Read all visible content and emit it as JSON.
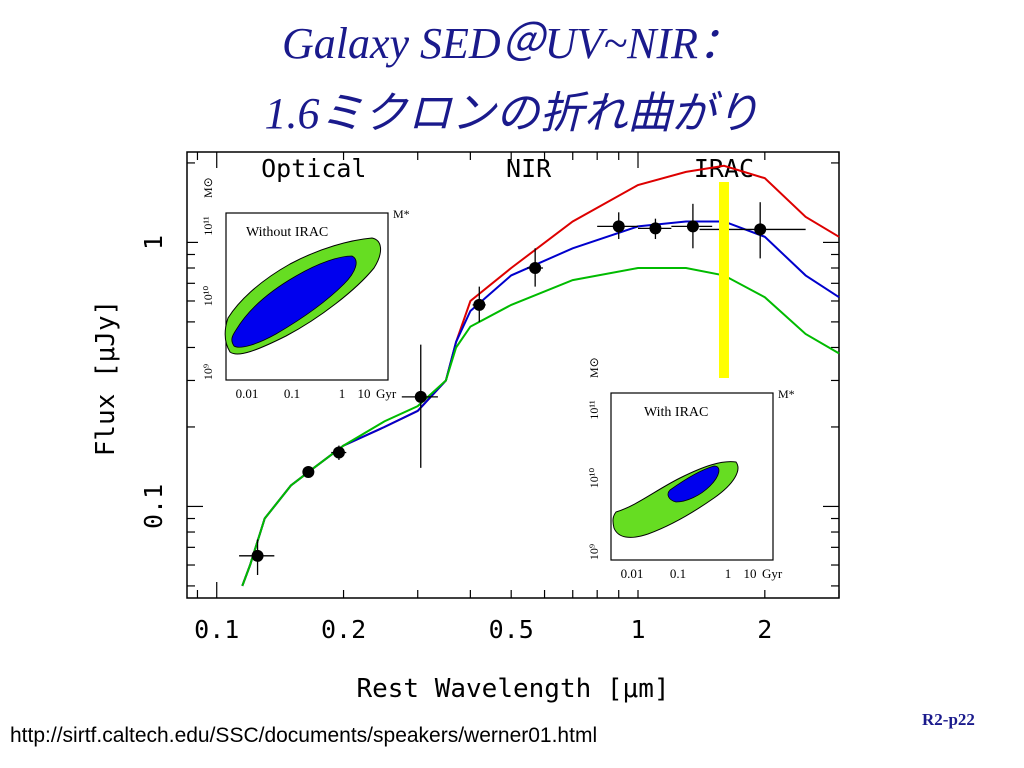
{
  "slide": {
    "title_line1": "Galaxy SED＠UV~NIR：",
    "title_line2": "1.6ミクロンの折れ曲がり",
    "source_url": "http://sirtf.caltech.edu/SSC/documents/speakers/werner01.html",
    "page_number": "R2-p22"
  },
  "chart_data": [
    {
      "type": "line",
      "xlabel": "Rest Wavelength [μm]",
      "ylabel": "Flux [μJy]",
      "xscale": "log",
      "yscale": "log",
      "xlim": [
        0.085,
        3.0
      ],
      "ylim": [
        0.045,
        2.2
      ],
      "xticks": [
        0.1,
        0.2,
        0.5,
        1,
        2
      ],
      "xtick_labels": [
        "0.1",
        "0.2",
        "0.5",
        "1",
        "2"
      ],
      "yticks": [
        0.1,
        1
      ],
      "ytick_labels": [
        "0.1",
        "1"
      ],
      "band_labels": [
        {
          "text": "Optical",
          "x": 0.17
        },
        {
          "text": "NIR",
          "x": 0.55
        },
        {
          "text": "IRAC",
          "x": 1.6
        }
      ],
      "marker_line": {
        "x": 1.6,
        "color": "#ffff00"
      },
      "series": [
        {
          "color": "#dd0000",
          "x": [
            0.115,
            0.12,
            0.13,
            0.15,
            0.17,
            0.2,
            0.25,
            0.3,
            0.35,
            0.37,
            0.4,
            0.5,
            0.7,
            1.0,
            1.3,
            1.6,
            2.0,
            2.5,
            3.0
          ],
          "y": [
            0.05,
            0.06,
            0.09,
            0.12,
            0.14,
            0.17,
            0.2,
            0.23,
            0.3,
            0.42,
            0.6,
            0.8,
            1.2,
            1.65,
            1.85,
            1.95,
            1.75,
            1.25,
            1.05
          ]
        },
        {
          "color": "#0000cc",
          "x": [
            0.115,
            0.12,
            0.13,
            0.15,
            0.17,
            0.2,
            0.25,
            0.3,
            0.35,
            0.37,
            0.4,
            0.5,
            0.7,
            1.0,
            1.3,
            1.6,
            2.0,
            2.5,
            3.0
          ],
          "y": [
            0.05,
            0.06,
            0.09,
            0.12,
            0.14,
            0.17,
            0.2,
            0.23,
            0.3,
            0.42,
            0.55,
            0.75,
            0.95,
            1.15,
            1.2,
            1.2,
            1.05,
            0.75,
            0.62
          ]
        },
        {
          "color": "#00bb00",
          "x": [
            0.115,
            0.12,
            0.13,
            0.15,
            0.17,
            0.2,
            0.25,
            0.3,
            0.35,
            0.37,
            0.4,
            0.5,
            0.7,
            1.0,
            1.3,
            1.6,
            2.0,
            2.5,
            3.0
          ],
          "y": [
            0.05,
            0.06,
            0.09,
            0.12,
            0.14,
            0.17,
            0.21,
            0.24,
            0.3,
            0.4,
            0.48,
            0.58,
            0.72,
            0.8,
            0.8,
            0.75,
            0.62,
            0.45,
            0.38
          ]
        }
      ],
      "points": {
        "x": [
          0.125,
          0.165,
          0.195,
          0.305,
          0.42,
          0.57,
          0.9,
          1.1,
          1.35,
          1.95
        ],
        "y": [
          0.065,
          0.135,
          0.16,
          0.26,
          0.58,
          0.8,
          1.15,
          1.13,
          1.15,
          1.12
        ],
        "xerr": [
          0.012,
          0.005,
          0.008,
          0.03,
          0.015,
          0.025,
          0.1,
          0.1,
          0.15,
          0.55
        ],
        "yerr_up": [
          0.01,
          0.005,
          0.01,
          0.15,
          0.1,
          0.15,
          0.15,
          0.1,
          0.25,
          0.3
        ],
        "yerr_down": [
          0.01,
          0.005,
          0.01,
          0.12,
          0.08,
          0.12,
          0.12,
          0.1,
          0.2,
          0.25
        ]
      }
    },
    {
      "type": "contour",
      "label": "Without IRAC",
      "xlabel": "Gyr",
      "ylabel": "M⊙",
      "top_label": "M*",
      "xtick_labels": [
        "0.01",
        "0.1",
        "1",
        "10"
      ],
      "ytick_labels": [
        "10⁹",
        "10¹⁰",
        "10¹¹"
      ],
      "colors": {
        "outer": "#66dd22",
        "inner": "#0000ee"
      }
    },
    {
      "type": "contour",
      "label": "With IRAC",
      "xlabel": "Gyr",
      "ylabel": "M⊙",
      "top_label": "M*",
      "xtick_labels": [
        "0.01",
        "0.1",
        "1",
        "10"
      ],
      "ytick_labels": [
        "10⁹",
        "10¹⁰",
        "10¹¹"
      ],
      "colors": {
        "outer": "#66dd22",
        "inner": "#0000ee"
      }
    }
  ]
}
